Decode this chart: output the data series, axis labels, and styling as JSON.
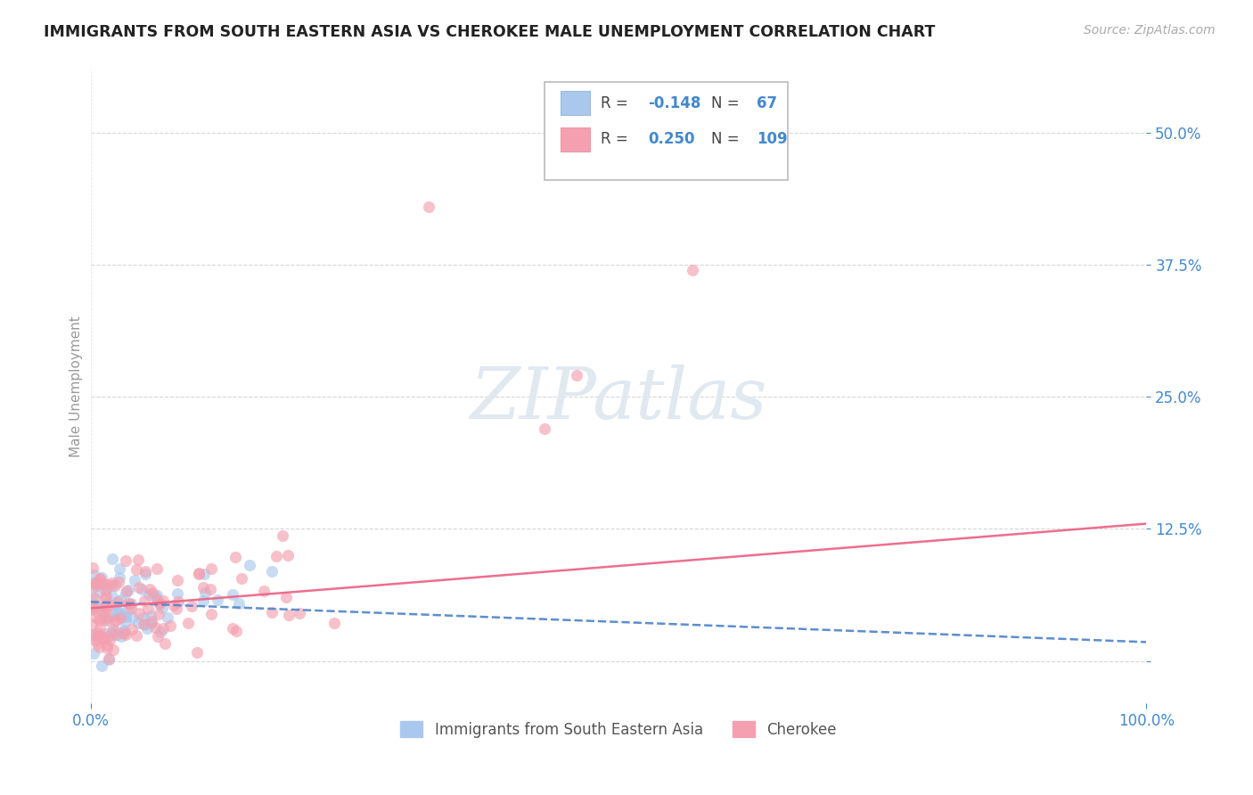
{
  "title": "IMMIGRANTS FROM SOUTH EASTERN ASIA VS CHEROKEE MALE UNEMPLOYMENT CORRELATION CHART",
  "source": "Source: ZipAtlas.com",
  "ylabel": "Male Unemployment",
  "xlim": [
    0.0,
    1.0
  ],
  "ylim": [
    -0.04,
    0.56
  ],
  "yticks": [
    0.0,
    0.125,
    0.25,
    0.375,
    0.5
  ],
  "ytick_labels": [
    "",
    "12.5%",
    "25.0%",
    "37.5%",
    "50.0%"
  ],
  "color_blue": "#aac8ee",
  "color_pink": "#f4a0b0",
  "color_blue_line": "#5588cc",
  "color_pink_line": "#ee6688",
  "axis_label_color": "#4488cc",
  "grid_color": "#cccccc",
  "background_color": "#ffffff",
  "title_color": "#222222",
  "source_color": "#aaaaaa",
  "ylabel_color": "#999999",
  "watermark_color": "#e0e8f0",
  "legend_r1": "-0.148",
  "legend_n1": "67",
  "legend_r2": "0.250",
  "legend_n2": "109"
}
